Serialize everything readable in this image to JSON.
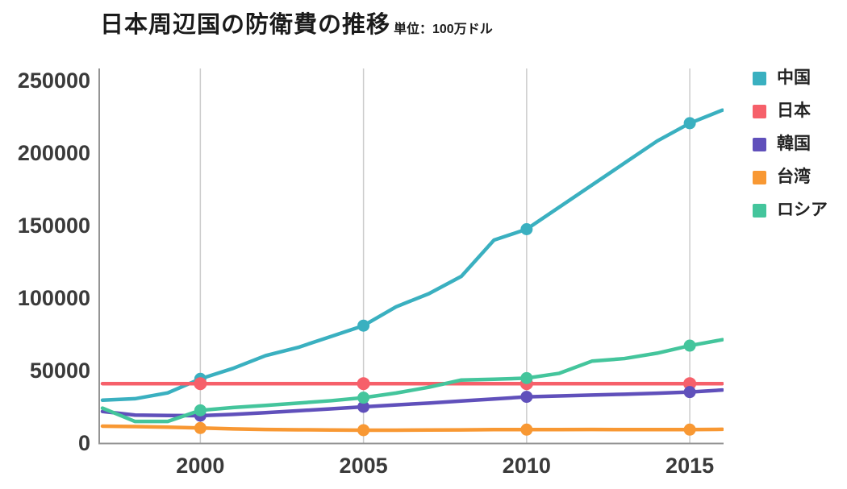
{
  "header": {
    "title": "日本周辺国の防衛費の推移",
    "unit": "単位：100万ドル"
  },
  "colors": {
    "background": "#ffffff",
    "gridline": "#cccccc",
    "axis": "#949494",
    "tick_label": "#3a3a3a",
    "title_text": "#1b1b1b"
  },
  "chart_data": {
    "type": "line",
    "title": "日本周辺国の防衛費の推移",
    "subtitle": "単位：100万ドル",
    "xlabel": "",
    "ylabel": "",
    "grid": "vertical-only",
    "legend_position": "right",
    "xlim": [
      1996.9,
      2016.2
    ],
    "ylim": [
      0,
      250000
    ],
    "x_ticks": [
      2000,
      2005,
      2010,
      2015
    ],
    "y_ticks": [
      0,
      50000,
      100000,
      150000,
      200000,
      250000
    ],
    "marker_years": [
      2000,
      2005,
      2010,
      2015
    ],
    "x": [
      1997,
      1998,
      1999,
      2000,
      2001,
      2002,
      2003,
      2004,
      2005,
      2006,
      2007,
      2008,
      2009,
      2010,
      2011,
      2012,
      2013,
      2014,
      2015,
      2016
    ],
    "series": [
      {
        "name": "中国",
        "key": "china",
        "color": "#3ab0c0",
        "values": [
          29600,
          30600,
          34600,
          44300,
          51500,
          60300,
          66000,
          73500,
          81000,
          94000,
          103000,
          115000,
          140000,
          147500,
          162700,
          177900,
          193100,
          208300,
          220600,
          229600
        ]
      },
      {
        "name": "日本",
        "key": "japan",
        "color": "#f6606a",
        "values": [
          41000,
          41000,
          41000,
          41000,
          41000,
          41000,
          41000,
          41000,
          41000,
          41000,
          41000,
          41000,
          41000,
          41000,
          41000,
          41000,
          41000,
          41000,
          41000,
          41000
        ]
      },
      {
        "name": "韓国",
        "key": "korea",
        "color": "#6050bb",
        "values": [
          21800,
          19300,
          19000,
          18900,
          19800,
          21000,
          22300,
          23600,
          25000,
          26300,
          27600,
          29000,
          30400,
          31900,
          32500,
          33100,
          33700,
          34400,
          35200,
          36600
        ]
      },
      {
        "name": "台湾",
        "key": "taiwan",
        "color": "#f89833",
        "values": [
          11700,
          11400,
          11000,
          10400,
          9800,
          9400,
          9200,
          9000,
          8900,
          8900,
          9000,
          9100,
          9300,
          9300,
          9300,
          9400,
          9300,
          9300,
          9300,
          9500
        ]
      },
      {
        "name": "ロシア",
        "key": "russia",
        "color": "#44c59c",
        "values": [
          24100,
          14900,
          14900,
          22600,
          24500,
          26000,
          27600,
          29200,
          31300,
          34500,
          38500,
          43500,
          44000,
          44800,
          48100,
          56500,
          58300,
          62000,
          67200,
          71300
        ]
      }
    ]
  }
}
